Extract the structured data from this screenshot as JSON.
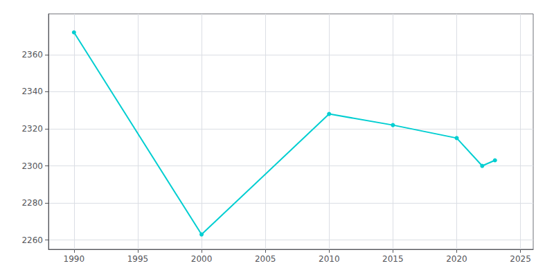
{
  "chart_data": {
    "type": "line",
    "x": [
      1990,
      2000,
      2010,
      2015,
      2020,
      2022,
      2023
    ],
    "values": [
      2372,
      2263,
      2328,
      2322,
      2315,
      2300,
      2303
    ],
    "color": "#00CED1",
    "marker": "circle",
    "xlim": [
      1988,
      2026
    ],
    "ylim": [
      2255,
      2382
    ],
    "xticks": [
      1990,
      1995,
      2000,
      2005,
      2010,
      2015,
      2020,
      2025
    ],
    "yticks": [
      2260,
      2280,
      2300,
      2320,
      2340,
      2360
    ],
    "grid": true
  }
}
